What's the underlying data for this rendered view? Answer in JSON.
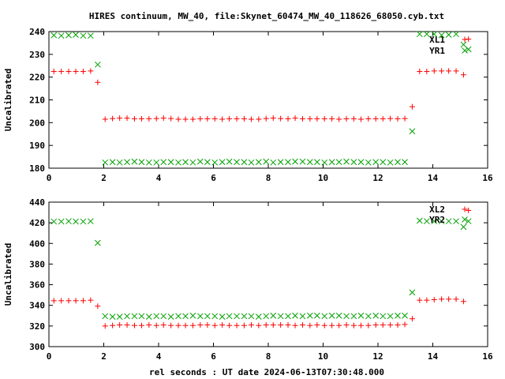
{
  "figure": {
    "title": "HIRES continuum, MW_40, file:Skynet_60474_MW_40_118626_68050.cyb.txt",
    "xlabel": "rel seconds : UT date 2024-06-13T07:30:48.000"
  },
  "chart_data": [
    {
      "type": "scatter",
      "ylabel": "Uncalibrated",
      "xlim": [
        0,
        16
      ],
      "ylim": [
        180,
        240
      ],
      "xticks": [
        "0",
        "2",
        "4",
        "6",
        "8",
        "10",
        "12",
        "14",
        "16"
      ],
      "yticks": [
        "180",
        "190",
        "200",
        "210",
        "220",
        "230",
        "240"
      ],
      "grid": false,
      "legend_position": "top-right",
      "series": [
        {
          "name": "XL1",
          "marker": "plus",
          "color": "#ff0000",
          "points": [
            [
              0.18,
              222.5
            ],
            [
              0.45,
              222.5
            ],
            [
              0.72,
              222.5
            ],
            [
              0.98,
              222.5
            ],
            [
              1.25,
              222.5
            ],
            [
              1.52,
              222.7
            ],
            [
              1.78,
              217.7
            ],
            [
              2.05,
              201.5
            ],
            [
              2.32,
              201.8
            ],
            [
              2.58,
              202.0
            ],
            [
              2.85,
              202.0
            ],
            [
              3.12,
              201.7
            ],
            [
              3.38,
              201.7
            ],
            [
              3.65,
              201.7
            ],
            [
              3.92,
              201.8
            ],
            [
              4.18,
              202.0
            ],
            [
              4.45,
              201.8
            ],
            [
              4.72,
              201.5
            ],
            [
              4.98,
              201.5
            ],
            [
              5.25,
              201.5
            ],
            [
              5.52,
              201.7
            ],
            [
              5.78,
              201.7
            ],
            [
              6.05,
              201.7
            ],
            [
              6.32,
              201.5
            ],
            [
              6.58,
              201.7
            ],
            [
              6.85,
              201.7
            ],
            [
              7.12,
              201.7
            ],
            [
              7.38,
              201.5
            ],
            [
              7.65,
              201.5
            ],
            [
              7.92,
              201.8
            ],
            [
              8.18,
              202.0
            ],
            [
              8.45,
              201.8
            ],
            [
              8.72,
              201.7
            ],
            [
              8.98,
              202.0
            ],
            [
              9.25,
              201.7
            ],
            [
              9.52,
              201.7
            ],
            [
              9.78,
              201.7
            ],
            [
              10.05,
              201.7
            ],
            [
              10.32,
              201.7
            ],
            [
              10.58,
              201.5
            ],
            [
              10.85,
              201.7
            ],
            [
              11.12,
              201.7
            ],
            [
              11.38,
              201.5
            ],
            [
              11.65,
              201.7
            ],
            [
              11.92,
              201.7
            ],
            [
              12.18,
              201.7
            ],
            [
              12.45,
              201.8
            ],
            [
              12.72,
              201.7
            ],
            [
              12.98,
              201.8
            ],
            [
              13.25,
              207.0
            ],
            [
              13.52,
              222.5
            ],
            [
              13.78,
              222.5
            ],
            [
              14.05,
              222.7
            ],
            [
              14.32,
              222.7
            ],
            [
              14.58,
              222.7
            ],
            [
              14.85,
              222.7
            ],
            [
              15.12,
              221.0
            ],
            [
              15.3,
              236.7
            ]
          ]
        },
        {
          "name": "YR1",
          "marker": "cross",
          "color": "#00a000",
          "points": [
            [
              0.18,
              238.4
            ],
            [
              0.45,
              238.2
            ],
            [
              0.72,
              238.4
            ],
            [
              0.98,
              238.6
            ],
            [
              1.25,
              238.2
            ],
            [
              1.52,
              238.2
            ],
            [
              1.78,
              225.5
            ],
            [
              2.05,
              182.5
            ],
            [
              2.32,
              182.7
            ],
            [
              2.58,
              182.5
            ],
            [
              2.85,
              182.7
            ],
            [
              3.12,
              182.9
            ],
            [
              3.38,
              182.7
            ],
            [
              3.65,
              182.5
            ],
            [
              3.92,
              182.5
            ],
            [
              4.18,
              182.7
            ],
            [
              4.45,
              182.7
            ],
            [
              4.72,
              182.5
            ],
            [
              4.98,
              182.7
            ],
            [
              5.25,
              182.5
            ],
            [
              5.52,
              182.9
            ],
            [
              5.78,
              182.7
            ],
            [
              6.05,
              182.5
            ],
            [
              6.32,
              182.7
            ],
            [
              6.58,
              182.9
            ],
            [
              6.85,
              182.7
            ],
            [
              7.12,
              182.7
            ],
            [
              7.38,
              182.5
            ],
            [
              7.65,
              182.7
            ],
            [
              7.92,
              182.9
            ],
            [
              8.18,
              182.5
            ],
            [
              8.45,
              182.7
            ],
            [
              8.72,
              182.7
            ],
            [
              8.98,
              182.9
            ],
            [
              9.25,
              182.9
            ],
            [
              9.52,
              182.7
            ],
            [
              9.78,
              182.7
            ],
            [
              10.05,
              182.5
            ],
            [
              10.32,
              182.7
            ],
            [
              10.58,
              182.7
            ],
            [
              10.85,
              182.9
            ],
            [
              11.12,
              182.7
            ],
            [
              11.38,
              182.7
            ],
            [
              11.65,
              182.5
            ],
            [
              11.92,
              182.7
            ],
            [
              12.18,
              182.7
            ],
            [
              12.45,
              182.5
            ],
            [
              12.72,
              182.7
            ],
            [
              12.98,
              182.7
            ],
            [
              13.25,
              196.2
            ],
            [
              13.52,
              238.9
            ],
            [
              13.78,
              238.9
            ],
            [
              14.05,
              238.9
            ],
            [
              14.32,
              238.4
            ],
            [
              14.58,
              238.6
            ],
            [
              14.85,
              238.9
            ],
            [
              15.12,
              234.3
            ],
            [
              15.3,
              232.2
            ]
          ]
        }
      ]
    },
    {
      "type": "scatter",
      "ylabel": "Uncalibrated",
      "xlim": [
        0,
        16
      ],
      "ylim": [
        300,
        440
      ],
      "xticks": [
        "0",
        "2",
        "4",
        "6",
        "8",
        "10",
        "12",
        "14",
        "16"
      ],
      "yticks": [
        "300",
        "320",
        "340",
        "360",
        "380",
        "400",
        "420",
        "440"
      ],
      "grid": false,
      "legend_position": "top-right",
      "series": [
        {
          "name": "XL2",
          "marker": "plus",
          "color": "#ff0000",
          "points": [
            [
              0.18,
              344.5
            ],
            [
              0.45,
              344.5
            ],
            [
              0.72,
              344.5
            ],
            [
              0.98,
              344.5
            ],
            [
              1.25,
              344.5
            ],
            [
              1.52,
              345.0
            ],
            [
              1.78,
              339.2
            ],
            [
              2.05,
              320.0
            ],
            [
              2.32,
              320.5
            ],
            [
              2.58,
              321.0
            ],
            [
              2.85,
              321.0
            ],
            [
              3.12,
              320.5
            ],
            [
              3.38,
              320.5
            ],
            [
              3.65,
              321.0
            ],
            [
              3.92,
              320.5
            ],
            [
              4.18,
              321.0
            ],
            [
              4.45,
              320.5
            ],
            [
              4.72,
              320.5
            ],
            [
              4.98,
              320.5
            ],
            [
              5.25,
              320.5
            ],
            [
              5.52,
              321.0
            ],
            [
              5.78,
              321.0
            ],
            [
              6.05,
              320.5
            ],
            [
              6.32,
              321.0
            ],
            [
              6.58,
              320.5
            ],
            [
              6.85,
              320.5
            ],
            [
              7.12,
              320.5
            ],
            [
              7.38,
              321.0
            ],
            [
              7.65,
              320.5
            ],
            [
              7.92,
              321.0
            ],
            [
              8.18,
              321.0
            ],
            [
              8.45,
              321.0
            ],
            [
              8.72,
              321.0
            ],
            [
              8.98,
              320.5
            ],
            [
              9.25,
              321.0
            ],
            [
              9.52,
              320.5
            ],
            [
              9.78,
              321.0
            ],
            [
              10.05,
              320.5
            ],
            [
              10.32,
              320.5
            ],
            [
              10.58,
              320.5
            ],
            [
              10.85,
              321.0
            ],
            [
              11.12,
              320.5
            ],
            [
              11.38,
              320.5
            ],
            [
              11.65,
              320.5
            ],
            [
              11.92,
              321.0
            ],
            [
              12.18,
              321.0
            ],
            [
              12.45,
              321.0
            ],
            [
              12.72,
              321.0
            ],
            [
              12.98,
              321.5
            ],
            [
              13.25,
              327.0
            ],
            [
              13.52,
              345.0
            ],
            [
              13.78,
              345.0
            ],
            [
              14.05,
              345.5
            ],
            [
              14.32,
              346.0
            ],
            [
              14.58,
              346.0
            ],
            [
              14.85,
              346.0
            ],
            [
              15.12,
              343.8
            ],
            [
              15.3,
              432.0
            ]
          ]
        },
        {
          "name": "YR2",
          "marker": "cross",
          "color": "#00a000",
          "points": [
            [
              0.18,
              421.2
            ],
            [
              0.45,
              421.2
            ],
            [
              0.72,
              421.5
            ],
            [
              0.98,
              421.2
            ],
            [
              1.25,
              421.2
            ],
            [
              1.52,
              421.5
            ],
            [
              1.78,
              400.5
            ],
            [
              2.05,
              329.5
            ],
            [
              2.32,
              329.0
            ],
            [
              2.58,
              329.0
            ],
            [
              2.85,
              329.5
            ],
            [
              3.12,
              329.5
            ],
            [
              3.38,
              329.5
            ],
            [
              3.65,
              329.0
            ],
            [
              3.92,
              329.5
            ],
            [
              4.18,
              329.5
            ],
            [
              4.45,
              329.0
            ],
            [
              4.72,
              329.5
            ],
            [
              4.98,
              329.5
            ],
            [
              5.25,
              330.0
            ],
            [
              5.52,
              329.5
            ],
            [
              5.78,
              329.5
            ],
            [
              6.05,
              329.5
            ],
            [
              6.32,
              329.0
            ],
            [
              6.58,
              329.5
            ],
            [
              6.85,
              329.5
            ],
            [
              7.12,
              329.5
            ],
            [
              7.38,
              329.5
            ],
            [
              7.65,
              329.0
            ],
            [
              7.92,
              329.5
            ],
            [
              8.18,
              330.0
            ],
            [
              8.45,
              329.5
            ],
            [
              8.72,
              329.5
            ],
            [
              8.98,
              330.0
            ],
            [
              9.25,
              329.5
            ],
            [
              9.52,
              330.0
            ],
            [
              9.78,
              330.0
            ],
            [
              10.05,
              329.5
            ],
            [
              10.32,
              330.0
            ],
            [
              10.58,
              330.0
            ],
            [
              10.85,
              329.5
            ],
            [
              11.12,
              329.5
            ],
            [
              11.38,
              330.0
            ],
            [
              11.65,
              329.5
            ],
            [
              11.92,
              330.0
            ],
            [
              12.18,
              329.5
            ],
            [
              12.45,
              329.5
            ],
            [
              12.72,
              330.0
            ],
            [
              12.98,
              330.0
            ],
            [
              13.25,
              352.5
            ],
            [
              13.52,
              422.0
            ],
            [
              13.78,
              421.5
            ],
            [
              14.05,
              421.5
            ],
            [
              14.32,
              421.5
            ],
            [
              14.58,
              421.5
            ],
            [
              14.85,
              421.5
            ],
            [
              15.12,
              416.0
            ],
            [
              15.3,
              421.5
            ]
          ]
        }
      ]
    }
  ]
}
